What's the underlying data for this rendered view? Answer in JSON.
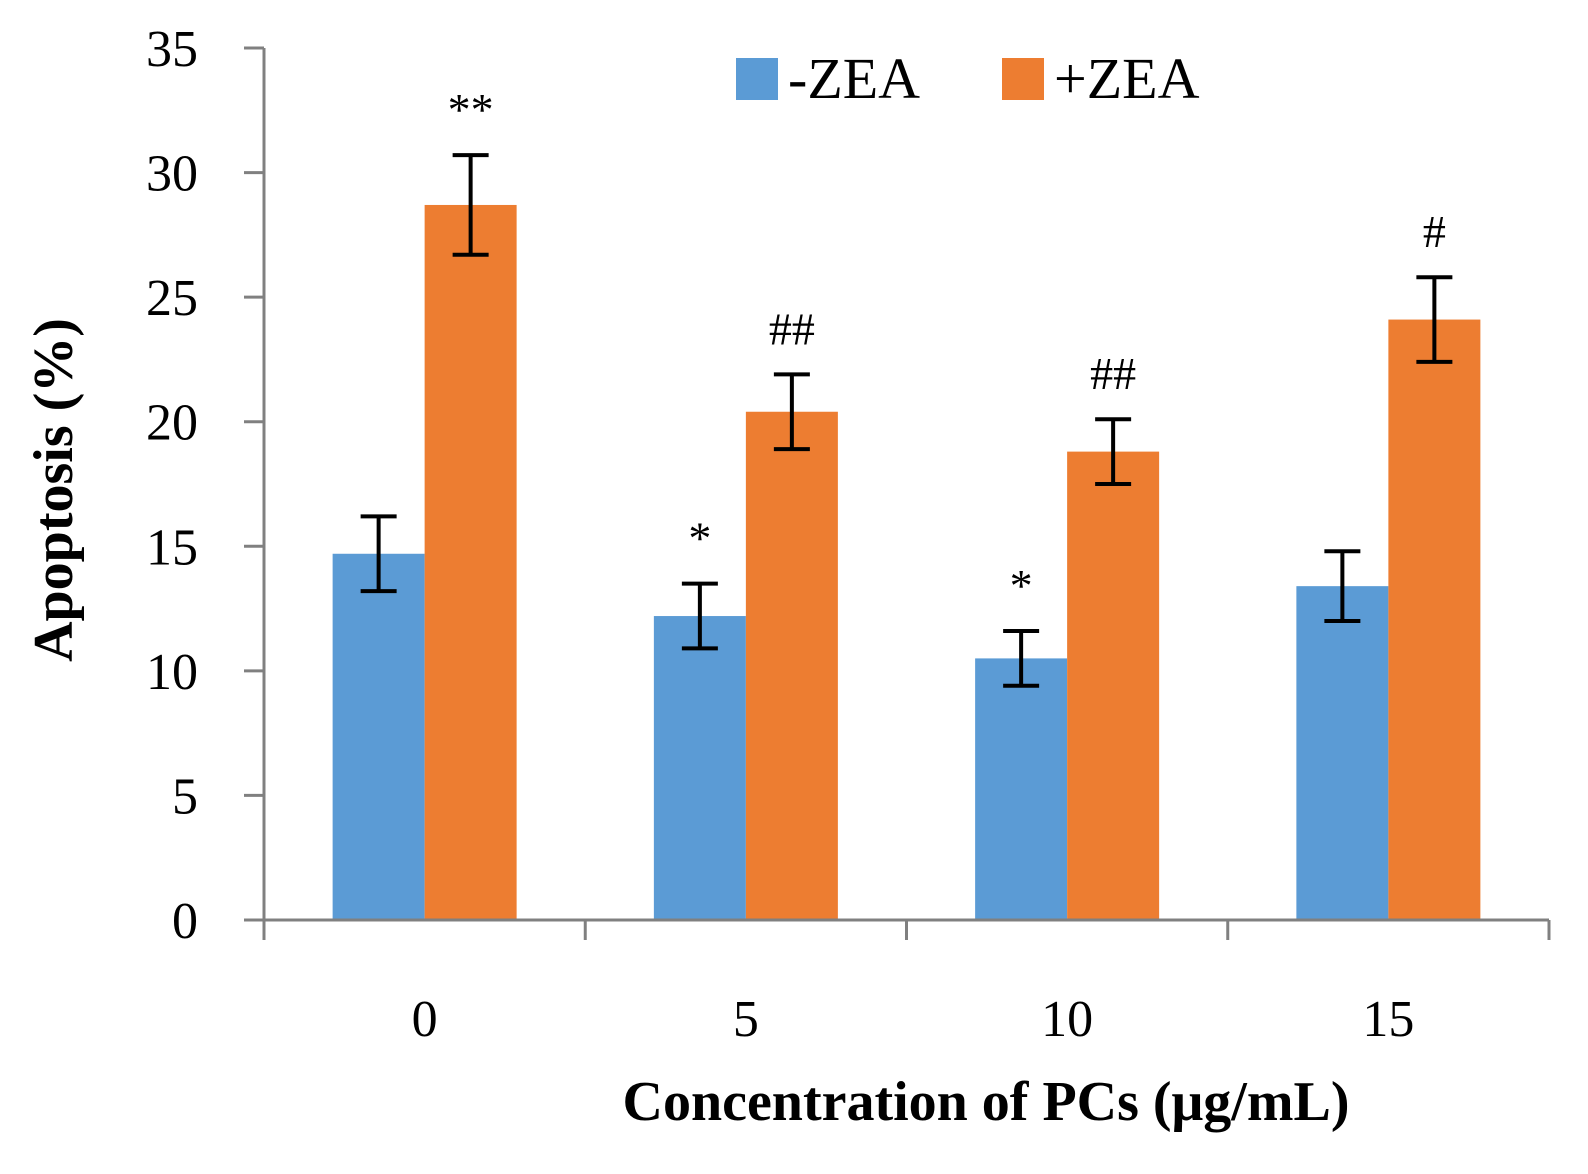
{
  "chart_data": {
    "type": "bar",
    "title": "",
    "xlabel": "Concentration of PCs (μg/mL)",
    "ylabel": "Apoptosis (%)",
    "categories": [
      "0",
      "5",
      "10",
      "15"
    ],
    "ylim": [
      0,
      35
    ],
    "yticks": [
      0,
      5,
      10,
      15,
      20,
      25,
      30,
      35
    ],
    "legend_position": "top-center",
    "grid": false,
    "series": [
      {
        "name": "-ZEA",
        "color": "#5b9bd5",
        "values": [
          14.7,
          12.2,
          10.5,
          13.4
        ],
        "errors": [
          1.5,
          1.3,
          1.1,
          1.4
        ],
        "annotations": [
          "",
          "*",
          "*",
          ""
        ]
      },
      {
        "name": "+ZEA",
        "color": "#ed7d31",
        "values": [
          28.7,
          20.4,
          18.8,
          24.1
        ],
        "errors": [
          2.0,
          1.5,
          1.3,
          1.7
        ],
        "annotations": [
          "**",
          "##",
          "##",
          "#"
        ]
      }
    ]
  }
}
